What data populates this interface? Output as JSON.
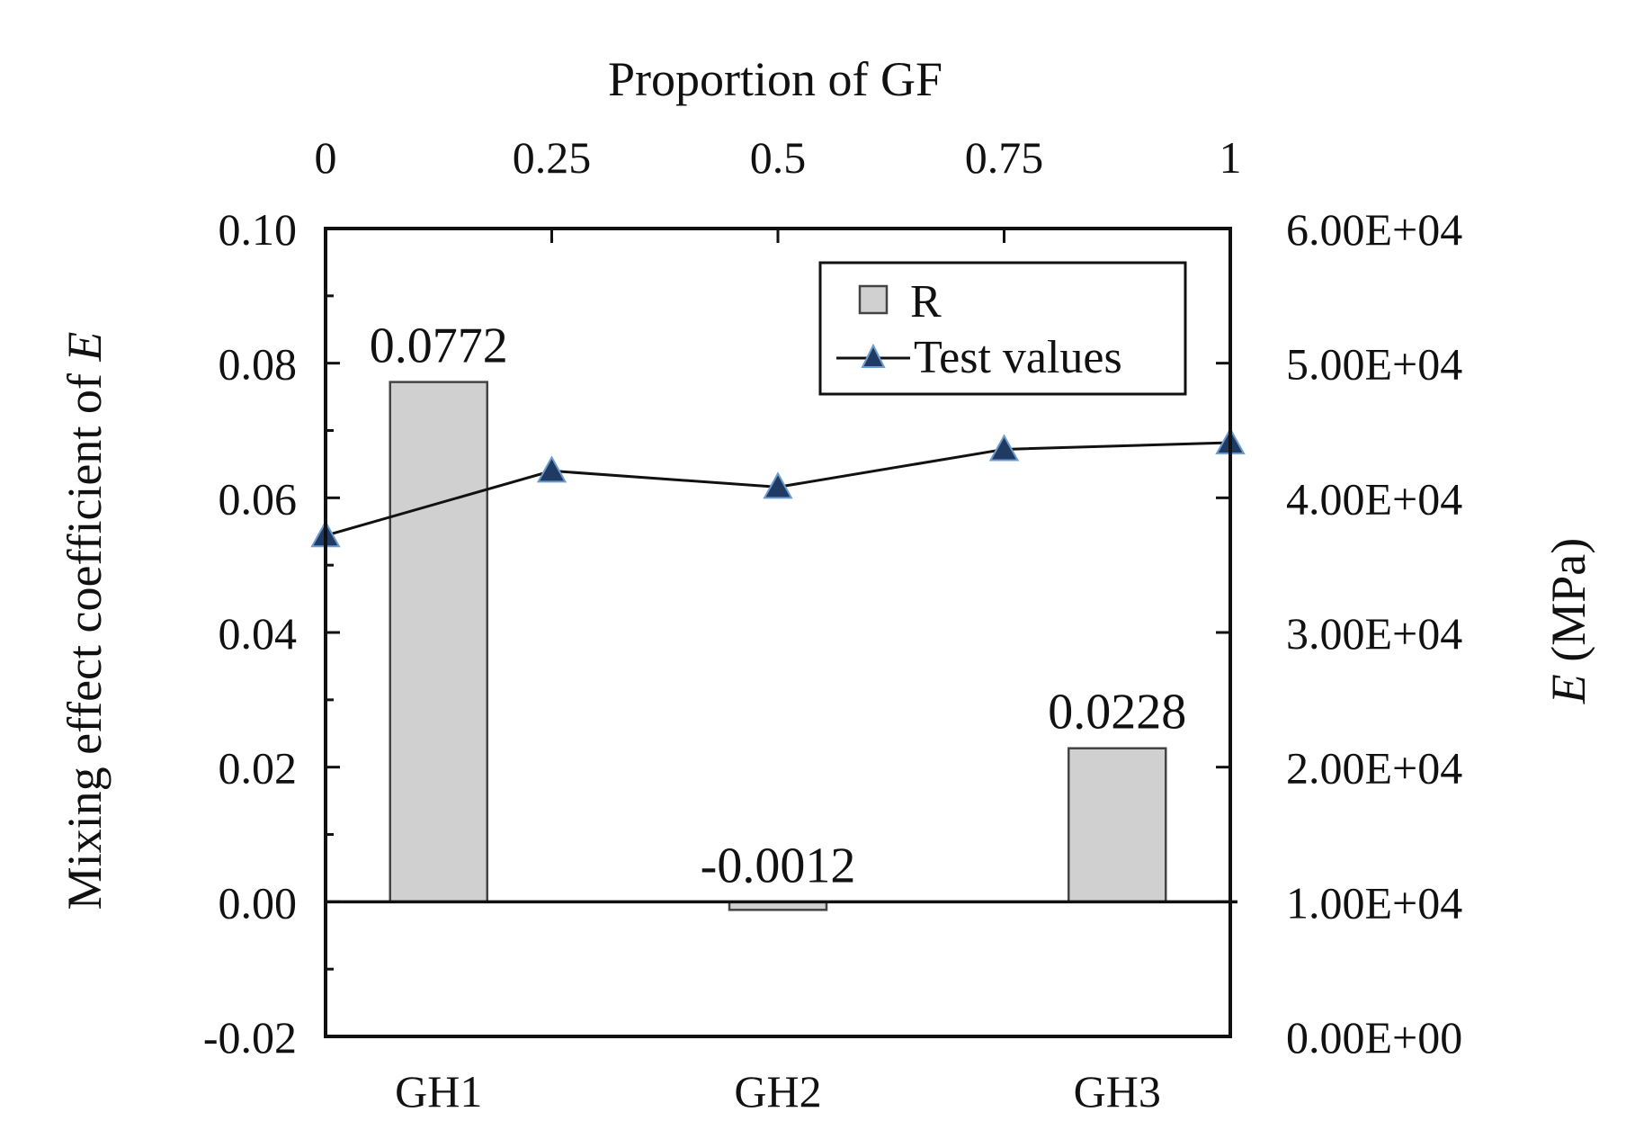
{
  "chart_data": {
    "type": "bar+line",
    "title": "",
    "top_axis": {
      "label": "Proportion of GF",
      "ticks": [
        "0",
        "0.25",
        "0.5",
        "0.75",
        "1"
      ],
      "range": [
        0,
        1
      ]
    },
    "left_axis": {
      "label_prefix": "Mixing effect coefficient of ",
      "label_italic": "E",
      "range": [
        -0.02,
        0.1
      ],
      "ticks": [
        "-0.02",
        "0.00",
        "0.02",
        "0.04",
        "0.06",
        "0.08",
        "0.10"
      ]
    },
    "right_axis": {
      "label_italic": "E",
      "label_suffix": " (MPa)",
      "range": [
        0,
        60000
      ],
      "ticks": [
        "0.00E+00",
        "1.00E+04",
        "2.00E+04",
        "3.00E+04",
        "4.00E+04",
        "5.00E+04",
        "6.00E+04"
      ]
    },
    "categories": [
      "GH1",
      "GH2",
      "GH3"
    ],
    "bar_series": {
      "name": "R",
      "color": "#d0d0d0",
      "x": [
        0.125,
        0.5,
        0.875
      ],
      "values": [
        0.0772,
        -0.0012,
        0.0228
      ],
      "labels": [
        "0.0772",
        "-0.0012",
        "0.0228"
      ]
    },
    "line_series": {
      "name": "Test values",
      "color": "#1f3a63",
      "x": [
        0,
        0.25,
        0.5,
        0.75,
        1
      ],
      "values": [
        37200,
        42000,
        40800,
        43600,
        44100
      ]
    },
    "legend": {
      "position": "top-right",
      "items": [
        "R",
        "Test values"
      ]
    }
  }
}
